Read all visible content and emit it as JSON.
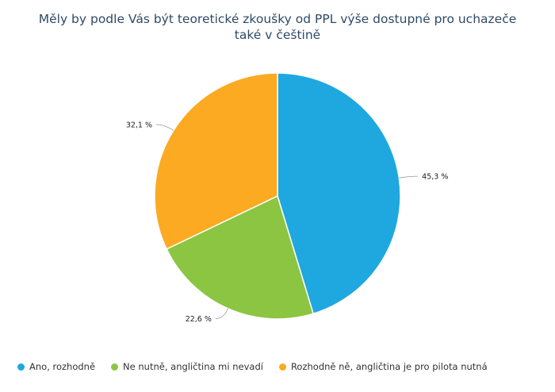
{
  "chart_data": {
    "type": "pie",
    "title_lines": [
      "Měly by podle Vás být teoretické zkoušky od PPL výše dostupné pro uchazeče",
      "také v češtině"
    ],
    "slices": [
      {
        "label": "Ano, rozhodně",
        "value": 45.3,
        "value_label": "45,3 %",
        "color": "#1fa8e0"
      },
      {
        "label": "Ne nutně, angličtina mi nevadí",
        "value": 22.6,
        "value_label": "22,6 %",
        "color": "#8bc541"
      },
      {
        "label": "Rozhodně ně, angličtina je pro pilota nutná",
        "value": 32.1,
        "value_label": "32,1 %",
        "color": "#fbaa22"
      }
    ],
    "legend_position": "bottom-left"
  }
}
